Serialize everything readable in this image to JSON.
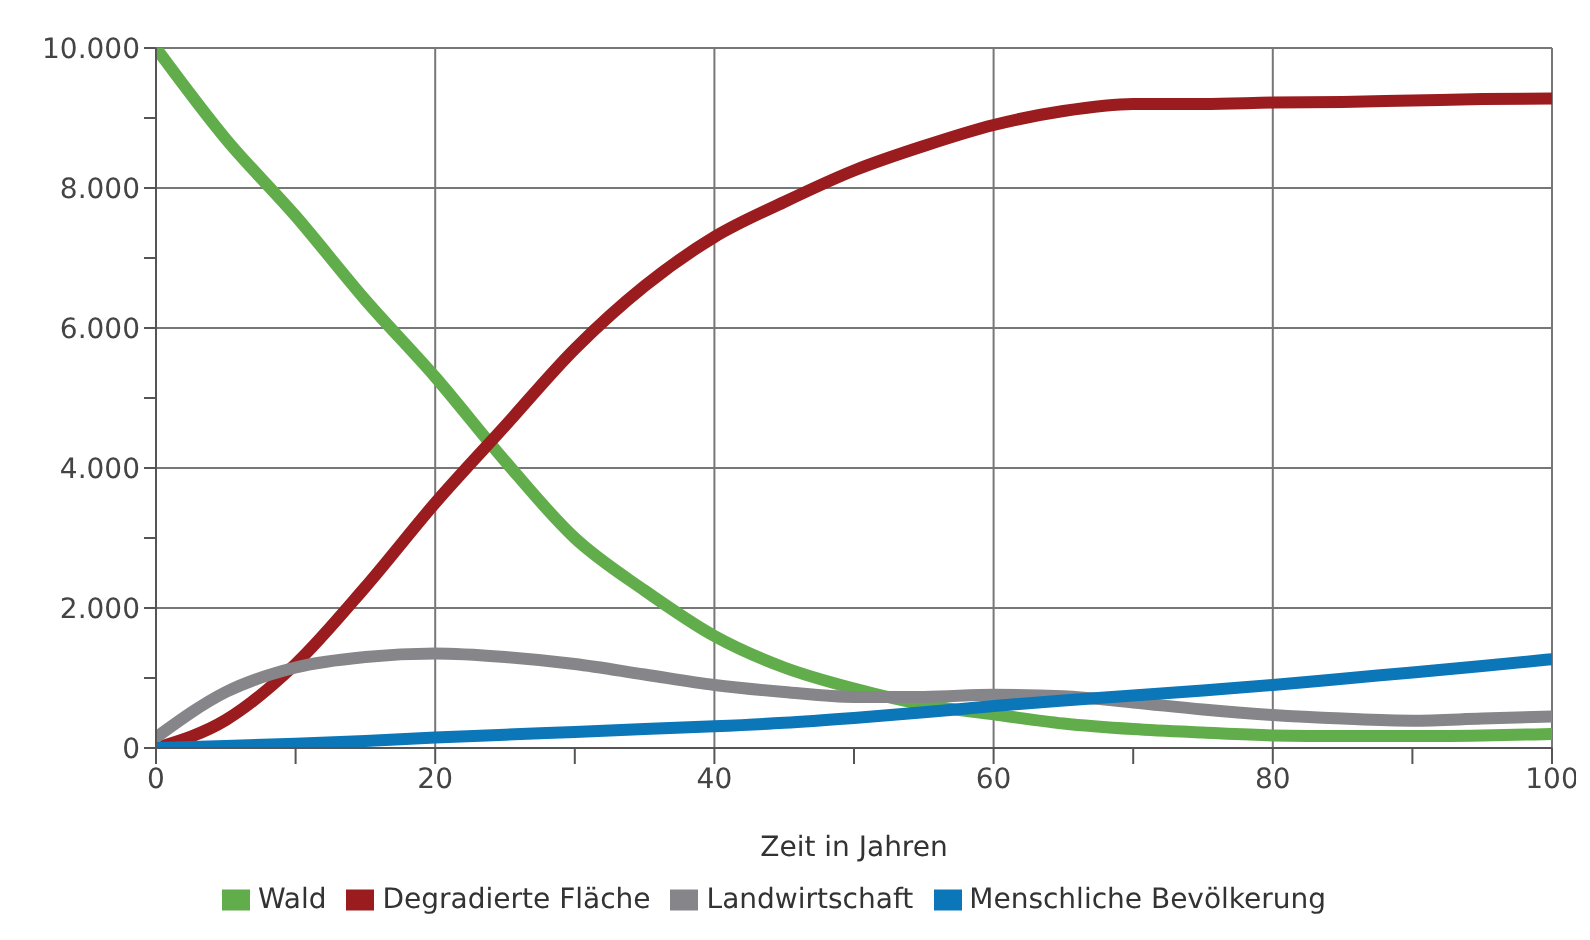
{
  "chart_data": {
    "type": "line",
    "xlabel": "Zeit in Jahren",
    "x": [
      0,
      5,
      10,
      15,
      20,
      25,
      30,
      35,
      40,
      45,
      50,
      55,
      60,
      65,
      70,
      75,
      80,
      85,
      90,
      95,
      100
    ],
    "series": [
      {
        "name": "Wald",
        "color": "#62ad4b",
        "values": [
          10000,
          8700,
          7600,
          6400,
          5300,
          4100,
          3000,
          2250,
          1600,
          1150,
          850,
          620,
          480,
          350,
          270,
          220,
          180,
          170,
          170,
          180,
          200
        ]
      },
      {
        "name": "Degradierte Fläche",
        "color": "#9b1c1f",
        "values": [
          0,
          400,
          1200,
          2300,
          3500,
          4600,
          5700,
          6600,
          7300,
          7800,
          8250,
          8600,
          8900,
          9100,
          9200,
          9200,
          9220,
          9230,
          9250,
          9270,
          9280
        ]
      },
      {
        "name": "Landwirtschaft",
        "color": "#86868a",
        "values": [
          150,
          800,
          1150,
          1300,
          1350,
          1300,
          1200,
          1050,
          900,
          800,
          730,
          730,
          760,
          740,
          650,
          550,
          470,
          420,
          390,
          420,
          450
        ]
      },
      {
        "name": "Menschliche Bevölkerung",
        "color": "#0b76b8",
        "values": [
          0,
          30,
          60,
          100,
          150,
          190,
          230,
          270,
          310,
          360,
          430,
          510,
          600,
          680,
          750,
          820,
          900,
          990,
          1080,
          1170,
          1270
        ]
      }
    ],
    "xlim": [
      0,
      100
    ],
    "xticks": [
      0,
      {
        "value": 10,
        "label": null
      },
      20,
      {
        "value": 30,
        "label": null
      },
      40,
      {
        "value": 50,
        "label": null
      },
      60,
      {
        "value": 70,
        "label": null
      },
      80,
      {
        "value": 90,
        "label": null
      },
      100
    ],
    "ylim": [
      0,
      10000
    ],
    "yticks": [
      {
        "value": 0,
        "label": "0"
      },
      {
        "value": 1000,
        "label": null
      },
      {
        "value": 2000,
        "label": "2.000"
      },
      {
        "value": 3000,
        "label": null
      },
      {
        "value": 4000,
        "label": "4.000"
      },
      {
        "value": 5000,
        "label": null
      },
      {
        "value": 6000,
        "label": "6.000"
      },
      {
        "value": 7000,
        "label": null
      },
      {
        "value": 8000,
        "label": "8.000"
      },
      {
        "value": 9000,
        "label": null
      },
      {
        "value": 10000,
        "label": "10.000"
      }
    ],
    "grid": true,
    "legend": "bottom",
    "line_style": "solid",
    "marker": "none"
  }
}
